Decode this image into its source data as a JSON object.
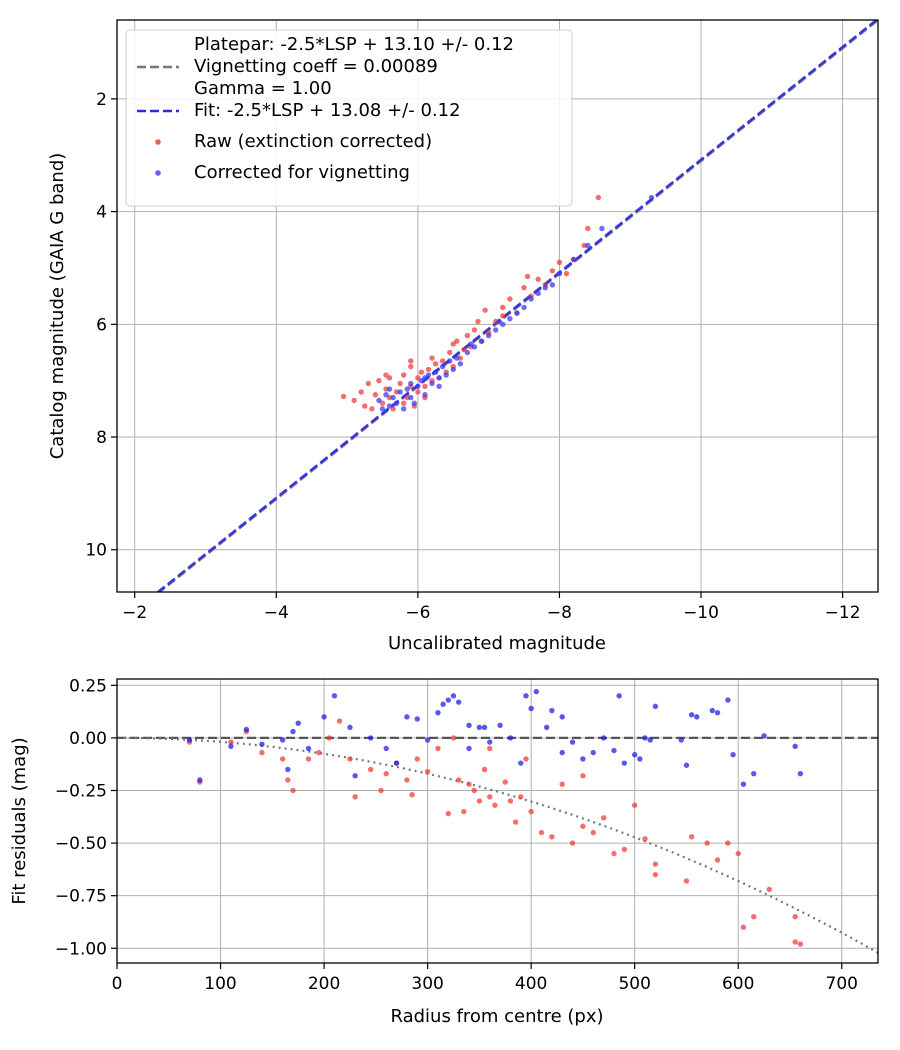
{
  "chart_data": [
    {
      "type": "scatter",
      "xlabel": "Uncalibrated magnitude",
      "ylabel": "Catalog magnitude (GAIA G band)",
      "xlim": [
        -1.75,
        -12.5
      ],
      "ylim": [
        10.75,
        0.6
      ],
      "x_inverted": true,
      "y_inverted": true,
      "grid": true,
      "legend_position": "top-left",
      "xticks": [
        -2,
        -4,
        -6,
        -8,
        -10,
        -12
      ],
      "xtick_labels": [
        "−2",
        "−4",
        "−6",
        "−8",
        "−10",
        "−12"
      ],
      "yticks": [
        2,
        4,
        6,
        8,
        10
      ],
      "ytick_labels": [
        "2",
        "4",
        "6",
        "8",
        "10"
      ],
      "legend": [
        {
          "label_lines": [
            "Platepar: -2.5*LSP + 13.10 +/- 0.12",
            "Vignetting coeff = 0.00089",
            "Gamma = 1.00"
          ],
          "kind": "line-dashed",
          "color": "#777777"
        },
        {
          "label_lines": [
            "Fit: -2.5*LSP + 13.08 +/- 0.12"
          ],
          "kind": "line-dashed",
          "color": "#2a2ae0"
        },
        {
          "label_lines": [
            "Raw (extinction corrected)"
          ],
          "kind": "marker",
          "color": "#f03030"
        },
        {
          "label_lines": [
            "Corrected for vignetting"
          ],
          "kind": "marker",
          "color": "#3b3bf5"
        }
      ],
      "lines": [
        {
          "slope": 1.0,
          "intercept": 13.1,
          "color": "#777777",
          "style": "dashed"
        },
        {
          "slope": 1.0,
          "intercept": 13.08,
          "color": "#2a2ae0",
          "style": "dashed"
        }
      ],
      "series": [
        {
          "color": "#f03030",
          "points": [
            [
              -4.95,
              7.28
            ],
            [
              -5.1,
              7.35
            ],
            [
              -5.2,
              7.2
            ],
            [
              -5.25,
              7.45
            ],
            [
              -5.3,
              7.05
            ],
            [
              -5.35,
              7.5
            ],
            [
              -5.4,
              7.25
            ],
            [
              -5.45,
              7.0
            ],
            [
              -5.5,
              7.4
            ],
            [
              -5.55,
              7.15
            ],
            [
              -5.6,
              7.3
            ],
            [
              -5.6,
              6.95
            ],
            [
              -5.65,
              7.5
            ],
            [
              -5.7,
              7.2
            ],
            [
              -5.75,
              7.05
            ],
            [
              -5.8,
              6.9
            ],
            [
              -5.8,
              7.4
            ],
            [
              -5.85,
              7.3
            ],
            [
              -5.9,
              6.75
            ],
            [
              -5.9,
              7.1
            ],
            [
              -5.95,
              7.45
            ],
            [
              -6.0,
              6.95
            ],
            [
              -6.0,
              7.2
            ],
            [
              -6.05,
              6.85
            ],
            [
              -6.1,
              7.1
            ],
            [
              -6.15,
              6.8
            ],
            [
              -6.2,
              7.0
            ],
            [
              -6.25,
              6.7
            ],
            [
              -6.3,
              6.95
            ],
            [
              -6.35,
              6.65
            ],
            [
              -6.4,
              6.85
            ],
            [
              -6.45,
              6.5
            ],
            [
              -6.5,
              6.75
            ],
            [
              -6.55,
              6.3
            ],
            [
              -6.6,
              6.6
            ],
            [
              -6.65,
              6.45
            ],
            [
              -6.7,
              6.2
            ],
            [
              -6.75,
              6.4
            ],
            [
              -6.8,
              6.1
            ],
            [
              -6.85,
              5.95
            ],
            [
              -6.9,
              6.3
            ],
            [
              -6.95,
              5.75
            ],
            [
              -7.0,
              6.15
            ],
            [
              -7.1,
              5.95
            ],
            [
              -7.2,
              5.7
            ],
            [
              -7.3,
              5.55
            ],
            [
              -7.4,
              5.8
            ],
            [
              -7.5,
              5.35
            ],
            [
              -7.6,
              5.5
            ],
            [
              -7.7,
              5.2
            ],
            [
              -7.8,
              5.3
            ],
            [
              -7.9,
              5.05
            ],
            [
              -8.0,
              4.9
            ],
            [
              -8.1,
              5.1
            ],
            [
              -8.2,
              4.85
            ],
            [
              -8.35,
              4.6
            ],
            [
              -8.4,
              4.3
            ],
            [
              -8.55,
              3.75
            ],
            [
              -5.9,
              6.65
            ],
            [
              -6.2,
              6.6
            ],
            [
              -6.5,
              6.35
            ],
            [
              -7.2,
              5.85
            ],
            [
              -7.55,
              5.15
            ],
            [
              -6.1,
              7.3
            ],
            [
              -5.55,
              6.9
            ]
          ]
        },
        {
          "color": "#3b3bf5",
          "points": [
            [
              -5.45,
              7.35
            ],
            [
              -5.5,
              7.5
            ],
            [
              -5.55,
              7.25
            ],
            [
              -5.6,
              7.45
            ],
            [
              -5.65,
              7.3
            ],
            [
              -5.7,
              7.4
            ],
            [
              -5.75,
              7.2
            ],
            [
              -5.8,
              7.5
            ],
            [
              -5.85,
              7.15
            ],
            [
              -5.9,
              7.3
            ],
            [
              -5.9,
              7.05
            ],
            [
              -5.95,
              7.4
            ],
            [
              -6.0,
              7.1
            ],
            [
              -6.05,
              7.0
            ],
            [
              -6.1,
              7.25
            ],
            [
              -6.15,
              6.9
            ],
            [
              -6.2,
              7.05
            ],
            [
              -6.25,
              6.85
            ],
            [
              -6.3,
              6.95
            ],
            [
              -6.35,
              6.75
            ],
            [
              -6.4,
              6.9
            ],
            [
              -6.45,
              6.65
            ],
            [
              -6.5,
              6.8
            ],
            [
              -6.55,
              6.6
            ],
            [
              -6.6,
              6.7
            ],
            [
              -6.7,
              6.5
            ],
            [
              -6.8,
              6.4
            ],
            [
              -6.9,
              6.3
            ],
            [
              -7.0,
              6.2
            ],
            [
              -7.1,
              6.1
            ],
            [
              -7.2,
              6.0
            ],
            [
              -7.3,
              5.9
            ],
            [
              -7.4,
              5.8
            ],
            [
              -7.5,
              5.7
            ],
            [
              -7.6,
              5.55
            ],
            [
              -7.7,
              5.45
            ],
            [
              -7.8,
              5.35
            ],
            [
              -7.9,
              5.3
            ],
            [
              -8.0,
              5.1
            ],
            [
              -8.2,
              4.85
            ],
            [
              -8.4,
              4.6
            ],
            [
              -8.6,
              4.3
            ],
            [
              -9.3,
              3.75
            ],
            [
              -5.6,
              7.15
            ],
            [
              -6.1,
              6.95
            ],
            [
              -6.75,
              6.35
            ],
            [
              -7.15,
              5.95
            ],
            [
              -6.3,
              7.1
            ]
          ]
        }
      ]
    },
    {
      "type": "scatter",
      "xlabel": "Radius from centre (px)",
      "ylabel": "Fit residuals (mag)",
      "xlim": [
        0,
        735
      ],
      "ylim": [
        -1.07,
        0.28
      ],
      "grid": true,
      "xticks": [
        0,
        100,
        200,
        300,
        400,
        500,
        600,
        700
      ],
      "xtick_labels": [
        "0",
        "100",
        "200",
        "300",
        "400",
        "500",
        "600",
        "700"
      ],
      "yticks": [
        0.25,
        0.0,
        -0.25,
        -0.5,
        -0.75,
        -1.0
      ],
      "ytick_labels": [
        "0.25",
        "0.00",
        "−0.25",
        "−0.50",
        "−0.75",
        "−1.00"
      ],
      "lines": [
        {
          "kind": "hline",
          "y": 0.0,
          "color": "#555555",
          "style": "dashed"
        },
        {
          "kind": "curve",
          "coefficient": 1.89e-06,
          "color": "#777777",
          "style": "dotted"
        }
      ],
      "series": [
        {
          "color": "#f03030",
          "points": [
            [
              70,
              -0.02
            ],
            [
              80,
              -0.21
            ],
            [
              110,
              -0.02
            ],
            [
              125,
              0.03
            ],
            [
              140,
              -0.07
            ],
            [
              160,
              -0.1
            ],
            [
              165,
              -0.2
            ],
            [
              170,
              -0.25
            ],
            [
              185,
              -0.1
            ],
            [
              195,
              -0.07
            ],
            [
              205,
              0.0
            ],
            [
              215,
              0.08
            ],
            [
              225,
              -0.1
            ],
            [
              230,
              -0.28
            ],
            [
              245,
              -0.15
            ],
            [
              255,
              -0.25
            ],
            [
              260,
              -0.17
            ],
            [
              270,
              -0.12
            ],
            [
              280,
              -0.2
            ],
            [
              285,
              -0.27
            ],
            [
              290,
              -0.1
            ],
            [
              300,
              -0.16
            ],
            [
              310,
              -0.05
            ],
            [
              320,
              -0.36
            ],
            [
              330,
              -0.2
            ],
            [
              335,
              -0.35
            ],
            [
              340,
              -0.22
            ],
            [
              345,
              -0.25
            ],
            [
              350,
              -0.3
            ],
            [
              355,
              -0.15
            ],
            [
              360,
              -0.28
            ],
            [
              365,
              -0.32
            ],
            [
              375,
              -0.21
            ],
            [
              380,
              -0.3
            ],
            [
              385,
              -0.4
            ],
            [
              390,
              -0.28
            ],
            [
              400,
              -0.35
            ],
            [
              410,
              -0.45
            ],
            [
              420,
              -0.47
            ],
            [
              430,
              -0.22
            ],
            [
              440,
              -0.5
            ],
            [
              450,
              -0.42
            ],
            [
              460,
              -0.45
            ],
            [
              470,
              -0.38
            ],
            [
              480,
              -0.55
            ],
            [
              490,
              -0.53
            ],
            [
              500,
              -0.32
            ],
            [
              510,
              -0.48
            ],
            [
              520,
              -0.6
            ],
            [
              520,
              -0.65
            ],
            [
              550,
              -0.68
            ],
            [
              555,
              -0.47
            ],
            [
              570,
              -0.5
            ],
            [
              580,
              -0.58
            ],
            [
              590,
              -0.5
            ],
            [
              600,
              -0.55
            ],
            [
              605,
              -0.9
            ],
            [
              615,
              -0.85
            ],
            [
              630,
              -0.72
            ],
            [
              655,
              -0.97
            ],
            [
              660,
              -0.98
            ],
            [
              655,
              -0.85
            ],
            [
              395,
              -0.1
            ],
            [
              360,
              -0.05
            ],
            [
              325,
              0.0
            ],
            [
              450,
              -0.18
            ]
          ]
        },
        {
          "color": "#2020e8",
          "points": [
            [
              70,
              -0.01
            ],
            [
              80,
              -0.2
            ],
            [
              110,
              -0.04
            ],
            [
              125,
              0.04
            ],
            [
              140,
              -0.03
            ],
            [
              160,
              -0.01
            ],
            [
              165,
              -0.15
            ],
            [
              170,
              0.03
            ],
            [
              175,
              0.07
            ],
            [
              185,
              -0.05
            ],
            [
              200,
              0.1
            ],
            [
              210,
              0.2
            ],
            [
              225,
              0.05
            ],
            [
              230,
              -0.18
            ],
            [
              245,
              0.0
            ],
            [
              260,
              -0.05
            ],
            [
              270,
              -0.12
            ],
            [
              280,
              0.1
            ],
            [
              290,
              0.09
            ],
            [
              300,
              -0.01
            ],
            [
              310,
              0.12
            ],
            [
              315,
              0.16
            ],
            [
              320,
              0.18
            ],
            [
              325,
              0.2
            ],
            [
              330,
              0.17
            ],
            [
              340,
              0.06
            ],
            [
              350,
              0.05
            ],
            [
              360,
              -0.02
            ],
            [
              370,
              0.06
            ],
            [
              380,
              0.0
            ],
            [
              390,
              -0.12
            ],
            [
              395,
              0.2
            ],
            [
              400,
              0.14
            ],
            [
              405,
              0.22
            ],
            [
              415,
              0.05
            ],
            [
              420,
              0.13
            ],
            [
              430,
              -0.07
            ],
            [
              440,
              -0.02
            ],
            [
              450,
              -0.1
            ],
            [
              460,
              -0.07
            ],
            [
              470,
              0.0
            ],
            [
              480,
              -0.06
            ],
            [
              485,
              0.2
            ],
            [
              490,
              -0.12
            ],
            [
              500,
              -0.08
            ],
            [
              510,
              0.0
            ],
            [
              515,
              -0.01
            ],
            [
              520,
              0.15
            ],
            [
              545,
              -0.01
            ],
            [
              550,
              -0.13
            ],
            [
              555,
              0.11
            ],
            [
              560,
              0.1
            ],
            [
              575,
              0.13
            ],
            [
              580,
              0.12
            ],
            [
              590,
              0.18
            ],
            [
              595,
              -0.08
            ],
            [
              605,
              -0.22
            ],
            [
              615,
              -0.17
            ],
            [
              625,
              0.01
            ],
            [
              655,
              -0.04
            ],
            [
              660,
              -0.17
            ],
            [
              340,
              -0.05
            ],
            [
              355,
              0.05
            ],
            [
              430,
              0.1
            ],
            [
              505,
              -0.1
            ]
          ]
        }
      ]
    }
  ]
}
